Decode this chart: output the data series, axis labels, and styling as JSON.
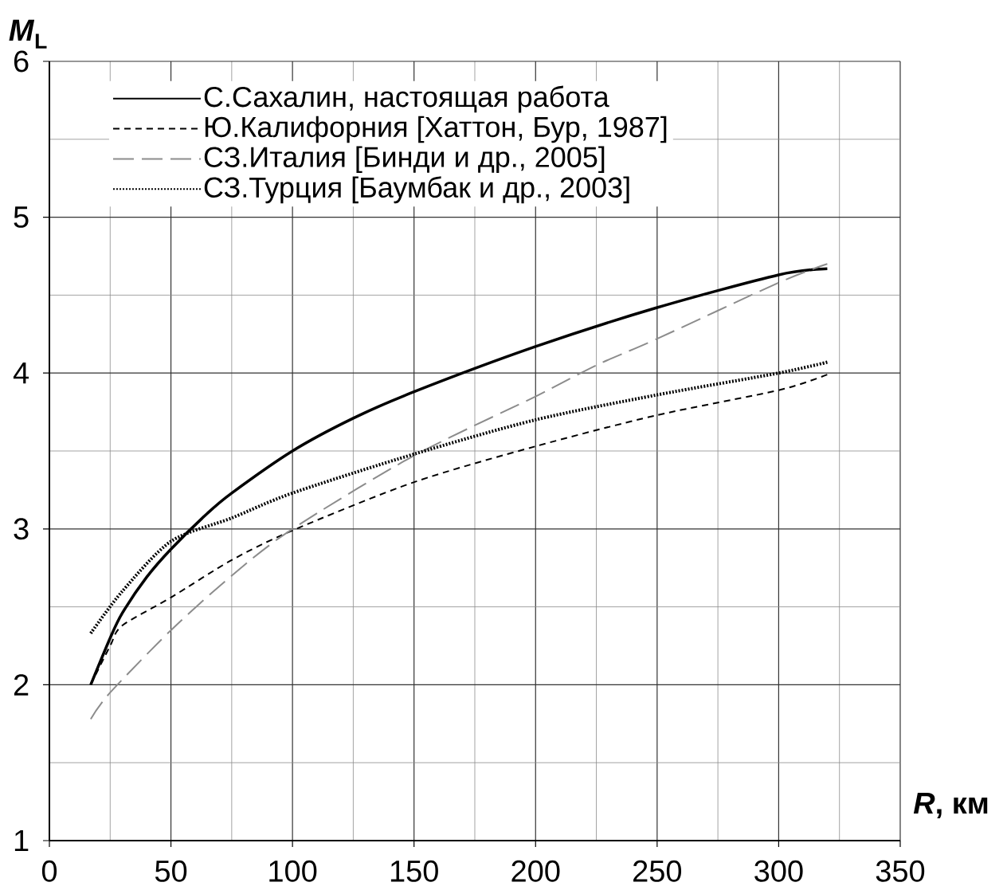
{
  "chart_data": {
    "type": "line",
    "xlabel": "*R*, км",
    "ylabel": "*M*$_{L}$",
    "xlim": [
      0,
      350
    ],
    "ylim": [
      1,
      6
    ],
    "xticks": [
      0,
      50,
      100,
      150,
      200,
      250,
      300,
      350
    ],
    "yticks": [
      1,
      2,
      3,
      4,
      5,
      6
    ],
    "grid": true,
    "legend": "top left",
    "series": [
      {
        "name": "С.Сахалин, настоящая работа",
        "color": "#000000",
        "line_style": "solid",
        "x": [
          17,
          25,
          30,
          40,
          50,
          65,
          75,
          100,
          125,
          150,
          200,
          250,
          300,
          320
        ],
        "values": [
          2.0,
          2.3,
          2.46,
          2.69,
          2.87,
          3.1,
          3.23,
          3.5,
          3.71,
          3.88,
          4.17,
          4.42,
          4.63,
          4.67
        ]
      },
      {
        "name": "Ю.Калифорния [Хаттон, Бур, 1987]",
        "color": "#000000",
        "line_style": "dashed",
        "x": [
          17,
          25,
          30,
          50,
          75,
          100,
          150,
          200,
          250,
          300,
          320
        ],
        "values": [
          2.0,
          2.25,
          2.38,
          2.56,
          2.8,
          2.99,
          3.3,
          3.53,
          3.73,
          3.89,
          3.99
        ]
      },
      {
        "name": "СЗ.Италия [Бинди и др., 2005]",
        "color": "#8c8c8c",
        "line_style": "dashed",
        "x": [
          17,
          25,
          50,
          75,
          100,
          150,
          200,
          225,
          250,
          300,
          320
        ],
        "values": [
          1.78,
          1.95,
          2.35,
          2.7,
          3.0,
          3.47,
          3.85,
          4.05,
          4.22,
          4.58,
          4.7
        ]
      },
      {
        "name": "СЗ.Турция [Баумбак и др., 2003]",
        "color": "#000000",
        "line_style": "dotted",
        "x": [
          17,
          30,
          50,
          75,
          100,
          150,
          200,
          250,
          300,
          320
        ],
        "values": [
          2.33,
          2.6,
          2.92,
          3.07,
          3.23,
          3.48,
          3.7,
          3.86,
          4.0,
          4.07
        ]
      }
    ]
  }
}
